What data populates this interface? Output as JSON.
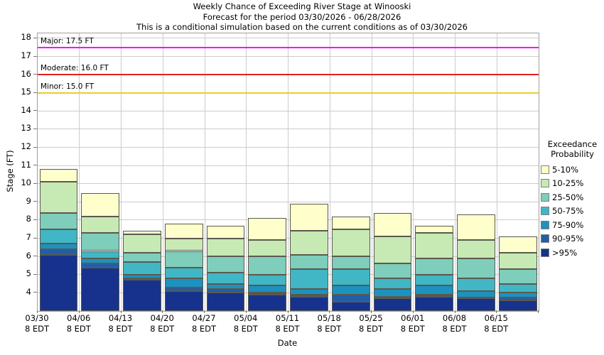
{
  "chart_data": {
    "type": "bar",
    "stacked": true,
    "title": "Weekly Chance of Exceeding River Stage at Winooski",
    "subtitle1": "Forecast for the period 03/30/2026 - 06/28/2026",
    "subtitle2": "This is a conditional simulation based on the current conditions as of 03/30/2026",
    "xlabel": "Date",
    "ylabel": "Stage (FT)",
    "ylim": [
      3.0,
      18.27
    ],
    "yticks": [
      4,
      5,
      6,
      7,
      8,
      9,
      10,
      11,
      12,
      13,
      14,
      15,
      16,
      17,
      18
    ],
    "grid": true,
    "categories": [
      "03/30",
      "04/06",
      "04/13",
      "04/20",
      "04/27",
      "05/04",
      "05/11",
      "05/18",
      "05/25",
      "06/01",
      "06/08",
      "06/15"
    ],
    "category_sublabel": "8 EDT",
    "series_note": "values are cumulative band-top stages in FT; each band extends down to the next band's top, lowest band extends to ylim bottom",
    "series": [
      {
        "name": "5-10%",
        "color": "#ffffcc",
        "tops": [
          10.8,
          9.5,
          7.4,
          7.8,
          7.7,
          8.1,
          8.9,
          8.2,
          8.4,
          7.7,
          8.3,
          7.1
        ]
      },
      {
        "name": "10-25%",
        "color": "#c7e9b4",
        "tops": [
          10.1,
          8.2,
          7.2,
          7.0,
          7.0,
          6.9,
          7.4,
          7.5,
          7.1,
          7.3,
          6.9,
          6.2
        ]
      },
      {
        "name": "25-50%",
        "color": "#7fcdbb",
        "tops": [
          8.4,
          7.3,
          6.2,
          6.3,
          6.0,
          6.0,
          6.1,
          6.0,
          5.6,
          5.9,
          5.9,
          5.3
        ]
      },
      {
        "name": "50-75%",
        "color": "#41b6c4",
        "tops": [
          7.5,
          6.3,
          5.7,
          5.4,
          5.1,
          5.0,
          5.3,
          5.3,
          4.8,
          5.0,
          4.8,
          4.5
        ]
      },
      {
        "name": "75-90%",
        "color": "#1d91c0",
        "tops": [
          6.7,
          5.9,
          5.0,
          4.8,
          4.5,
          4.4,
          4.2,
          4.4,
          4.2,
          4.4,
          4.1,
          4.0
        ]
      },
      {
        "name": "90-95%",
        "color": "#225ea8",
        "tops": [
          6.4,
          5.6,
          4.8,
          4.3,
          4.2,
          4.0,
          3.9,
          3.9,
          3.8,
          3.9,
          3.75,
          3.75
        ]
      },
      {
        "name": ">95%",
        "color": "#16328c",
        "tops": [
          6.1,
          5.4,
          4.7,
          4.1,
          4.0,
          3.9,
          3.8,
          3.5,
          3.7,
          3.8,
          3.7,
          3.6
        ]
      }
    ],
    "thresholds": [
      {
        "name": "major",
        "label": "Major: 17.5 FT",
        "value": 17.5,
        "color": "#ff00ff"
      },
      {
        "name": "moderate",
        "label": "Moderate: 16.0 FT",
        "value": 16.0,
        "color": "#dd2222"
      },
      {
        "name": "minor",
        "label": "Minor: 15.0 FT",
        "value": 15.0,
        "color": "#e9cd2e"
      }
    ],
    "legend": {
      "title_line1": "Exceedance",
      "title_line2": "Probability",
      "position": "right"
    }
  },
  "colors": {
    "background": "#ffffff",
    "text": "#000000",
    "grid": "#cccccc",
    "frame": "#a0a0a0",
    "bar_border": "#5a5a4e"
  }
}
